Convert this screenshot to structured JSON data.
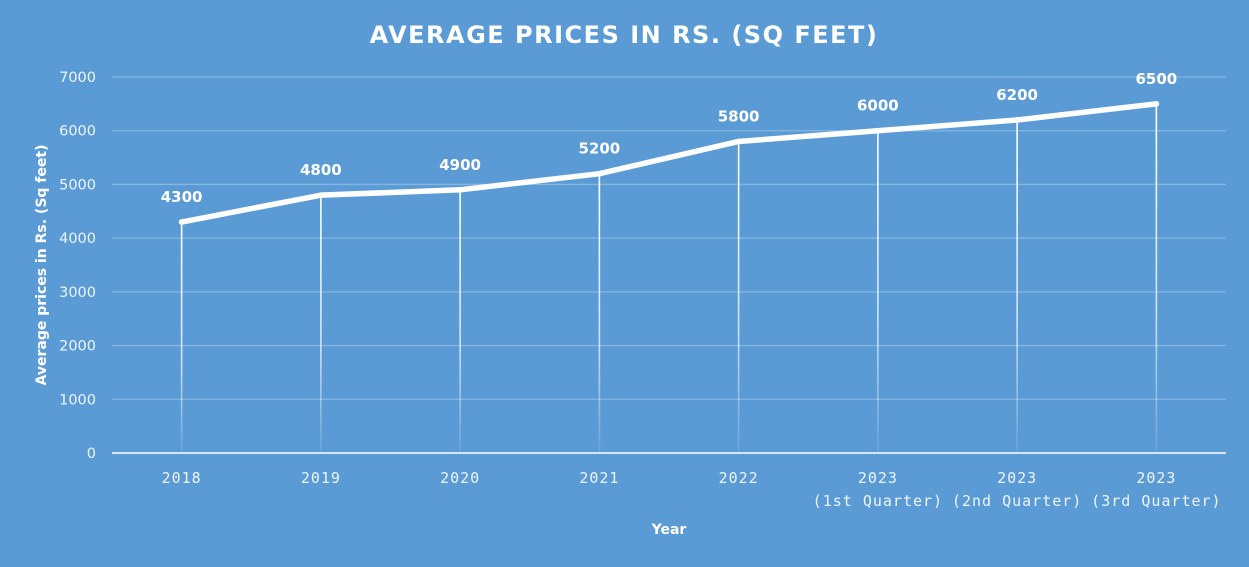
{
  "chart_data": {
    "type": "line",
    "title": "AVERAGE PRICES IN RS. (SQ FEET)",
    "xlabel": "Year",
    "ylabel": "Average prices in Rs. (Sq feet)",
    "categories": [
      [
        "2018"
      ],
      [
        "2019"
      ],
      [
        "2020"
      ],
      [
        "2021"
      ],
      [
        "2022"
      ],
      [
        "2023",
        "(1st Quarter)"
      ],
      [
        "2023",
        "(2nd Quarter)"
      ],
      [
        "2023",
        "(3rd Quarter)"
      ]
    ],
    "series": [
      {
        "name": "Average prices in Rs. (Sq feet)",
        "values": [
          4300,
          4800,
          4900,
          5200,
          5800,
          6000,
          6200,
          6500
        ],
        "data_labels": [
          "4300",
          "4800",
          "4900",
          "5200",
          "5800",
          "6000",
          "6200",
          "6500"
        ]
      }
    ],
    "ylim": [
      0,
      7000
    ],
    "yticks": [
      0,
      1000,
      2000,
      3000,
      4000,
      5000,
      6000,
      7000
    ],
    "grid": true,
    "drop_lines": true,
    "legend": "none",
    "colors": {
      "background": "#5b9bd5",
      "line": "#ffffff",
      "gridline": "#85b6e2",
      "axis": "#ffffff"
    }
  }
}
